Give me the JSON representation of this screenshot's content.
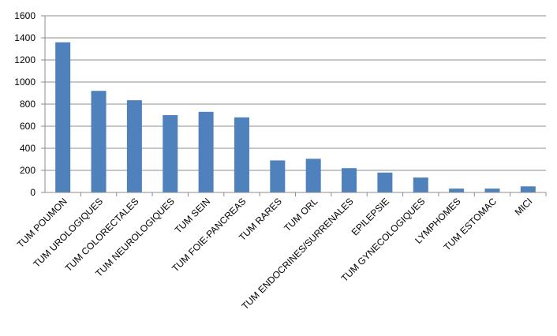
{
  "chart_data": {
    "type": "bar",
    "categories": [
      "TUM POUMON",
      "TUM UROLOGIQUES",
      "TUM COLORECTALES",
      "TUM NEUROLOGIQUES",
      "TUM SEIN",
      "TUM FOIE-PANCREAS",
      "TUM RARES",
      "TUM ORL",
      "TUM ENDOCRINES/SURRENALES",
      "EPILEPSIE",
      "TUM GYNECOLOGIQUES",
      "LYMPHOMES",
      "TUM ESTOMAC",
      "MICI"
    ],
    "values": [
      1360,
      920,
      835,
      700,
      730,
      680,
      290,
      305,
      220,
      180,
      135,
      35,
      35,
      55
    ],
    "color": "#4f81bd",
    "ylim": [
      0,
      1600
    ],
    "yticks": [
      0,
      200,
      400,
      600,
      800,
      1000,
      1200,
      1400,
      1600
    ],
    "grid": true
  }
}
